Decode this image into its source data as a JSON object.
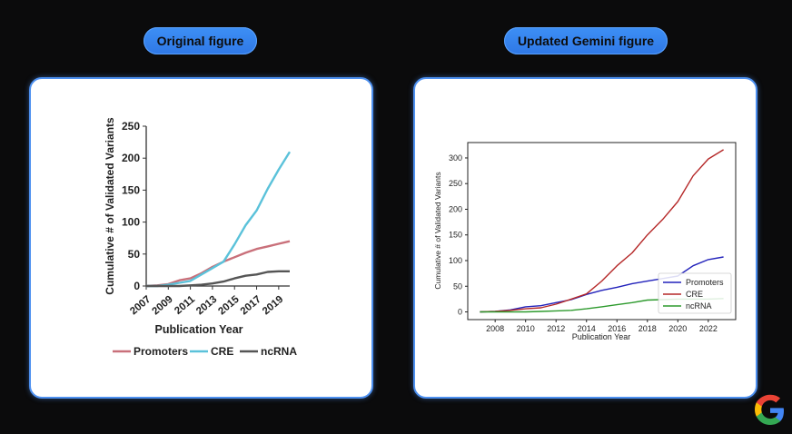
{
  "labels": {
    "original": "Original figure",
    "updated": "Updated Gemini figure"
  },
  "colors": {
    "accent": "#3d8ff5",
    "promoters_orig": "#c9707a",
    "cre_orig": "#5bc2da",
    "ncrna_orig": "#555555",
    "promoters_new": "#2222bb",
    "cre_new": "#b52828",
    "ncrna_new": "#2d9a2d"
  },
  "chart_data": [
    {
      "type": "line",
      "ylabel": "Cumulative # of Validated Variants",
      "xlabel": "Publication Year",
      "xlim": [
        2007,
        2020
      ],
      "ylim": [
        0,
        250
      ],
      "xticks": [
        2007,
        2009,
        2011,
        2013,
        2015,
        2017,
        2019
      ],
      "yticks": [
        0,
        50,
        100,
        150,
        200,
        250
      ],
      "legend_position": "bottom",
      "x": [
        2007,
        2008,
        2009,
        2010,
        2011,
        2012,
        2013,
        2014,
        2015,
        2016,
        2017,
        2018,
        2019,
        2020
      ],
      "series": [
        {
          "name": "Promoters",
          "values": [
            0,
            1,
            3,
            9,
            12,
            20,
            30,
            38,
            45,
            52,
            58,
            62,
            66,
            70
          ]
        },
        {
          "name": "CRE",
          "values": [
            0,
            0,
            2,
            5,
            8,
            18,
            28,
            38,
            65,
            95,
            118,
            152,
            182,
            210
          ]
        },
        {
          "name": "ncRNA",
          "values": [
            0,
            0,
            0,
            0,
            1,
            2,
            4,
            7,
            12,
            16,
            18,
            22,
            23,
            23
          ]
        }
      ]
    },
    {
      "type": "line",
      "ylabel": "Cumulative # of Validated Variants",
      "xlabel": "Publication Year",
      "xlim": [
        2006.2,
        2023.8
      ],
      "ylim": [
        -15,
        330
      ],
      "xticks": [
        2008,
        2010,
        2012,
        2014,
        2016,
        2018,
        2020,
        2022
      ],
      "yticks": [
        0,
        50,
        100,
        150,
        200,
        250,
        300
      ],
      "legend_position": "lower right",
      "x": [
        2007,
        2008,
        2009,
        2010,
        2011,
        2012,
        2013,
        2014,
        2015,
        2016,
        2017,
        2018,
        2019,
        2020,
        2021,
        2022,
        2023
      ],
      "series": [
        {
          "name": "Promoters",
          "values": [
            0,
            1,
            4,
            10,
            12,
            18,
            24,
            34,
            42,
            48,
            55,
            60,
            65,
            70,
            90,
            102,
            107
          ]
        },
        {
          "name": "CRE",
          "values": [
            0,
            1,
            3,
            6,
            8,
            15,
            25,
            35,
            60,
            90,
            115,
            150,
            180,
            215,
            265,
            298,
            316
          ]
        },
        {
          "name": "ncRNA",
          "values": [
            0,
            0,
            0,
            0,
            1,
            2,
            3,
            6,
            10,
            14,
            18,
            23,
            24,
            25,
            25,
            25,
            26
          ]
        }
      ]
    }
  ]
}
